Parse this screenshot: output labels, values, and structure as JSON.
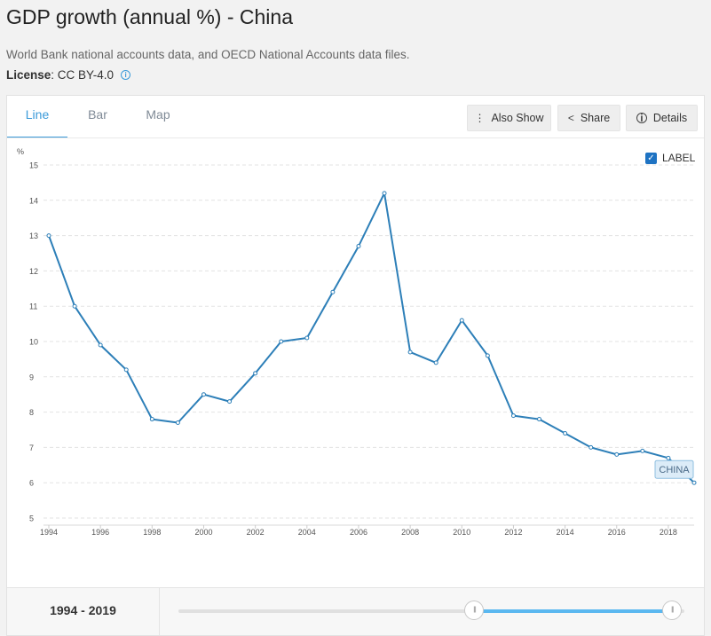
{
  "header": {
    "title": "GDP growth (annual %) - China",
    "source": "World Bank national accounts data, and OECD National Accounts data files.",
    "license_key": "License",
    "license_value": " : CC BY-4.0"
  },
  "tabs": [
    {
      "label": "Line",
      "active": true
    },
    {
      "label": "Bar",
      "active": false
    },
    {
      "label": "Map",
      "active": false
    }
  ],
  "toolbar": {
    "also_show": "Also Show",
    "share": "Share",
    "details": "Details"
  },
  "label_toggle": {
    "label": "LABEL",
    "checked": true
  },
  "range": {
    "start": "1994",
    "separator": " - ",
    "end": "2019",
    "start_fraction": 0.585,
    "end_fraction": 0.976
  },
  "colors": {
    "line": "#2d7fb8",
    "accent": "#3a9ad9",
    "slider_fill": "#5bb8f0"
  },
  "chart_data": {
    "type": "line",
    "ylabel": "%",
    "ylim": [
      5,
      15
    ],
    "yticks": [
      "5",
      "6",
      "7",
      "8",
      "9",
      "10",
      "11",
      "12",
      "13",
      "14",
      "15"
    ],
    "xticks": [
      "1994",
      "1996",
      "1998",
      "2000",
      "2002",
      "2004",
      "2006",
      "2008",
      "2010",
      "2012",
      "2014",
      "2016",
      "2018"
    ],
    "grid": true,
    "series": [
      {
        "name": "CHINA",
        "x": [
          1994,
          1995,
          1996,
          1997,
          1998,
          1999,
          2000,
          2001,
          2002,
          2003,
          2004,
          2005,
          2006,
          2007,
          2008,
          2009,
          2010,
          2011,
          2012,
          2013,
          2014,
          2015,
          2016,
          2017,
          2018,
          2019
        ],
        "values": [
          13.0,
          11.0,
          9.9,
          9.2,
          7.8,
          7.7,
          8.5,
          8.3,
          9.1,
          10.0,
          10.1,
          11.4,
          12.7,
          14.2,
          9.7,
          9.4,
          10.6,
          9.6,
          7.9,
          7.8,
          7.4,
          7.0,
          6.8,
          6.9,
          6.7,
          6.0
        ]
      }
    ]
  }
}
